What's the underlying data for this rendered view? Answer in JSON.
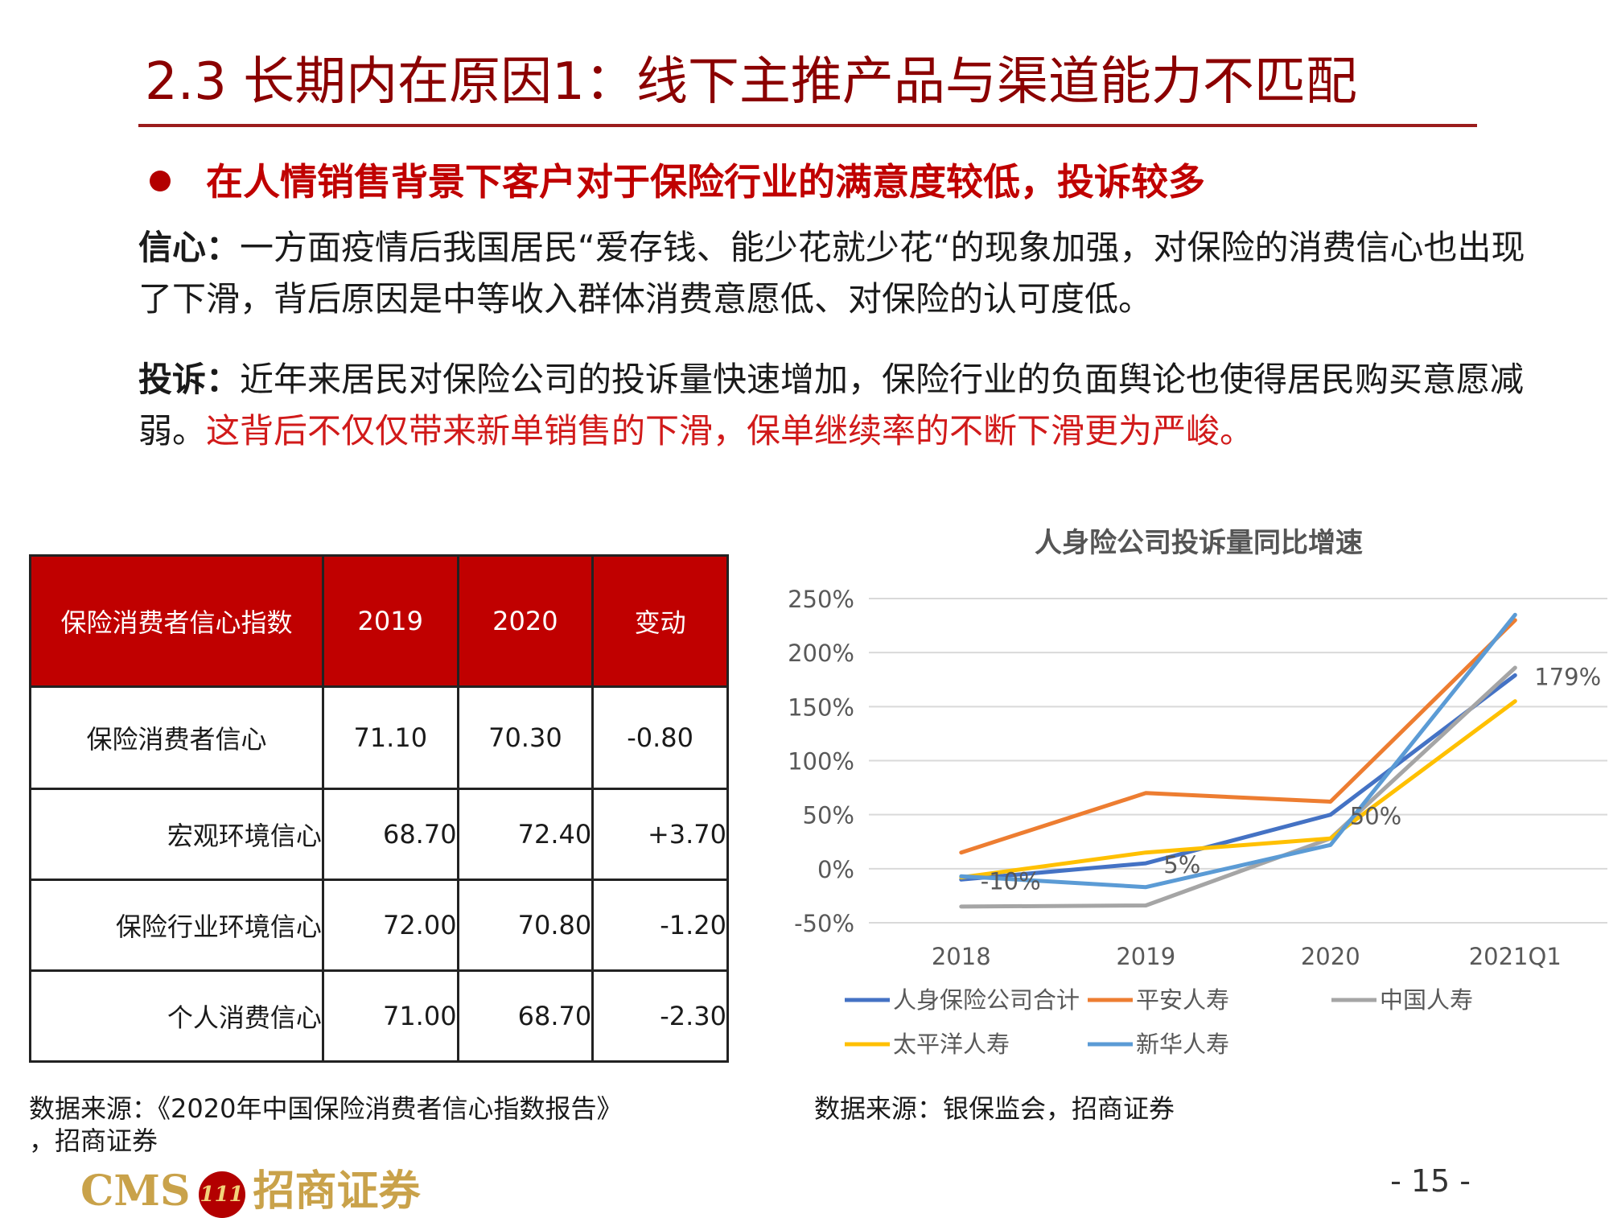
{
  "title": "2.3 长期内在原因1：线下主推产品与渠道能力不匹配",
  "bullet": "在人情销售背景下客户对于保险行业的满意度较低，投诉较多",
  "para1": {
    "label": "信心：",
    "text": "一方面疫情后我国居民“爱存钱、能少花就少花“的现象加强，对保险的消费信心也出现了下滑，背后原因是中等收入群体消费意愿低、对保险的认可度低。"
  },
  "para2": {
    "label": "投诉：",
    "text": "近年来居民对保险公司的投诉量快速增加，保险行业的负面舆论也使得居民购买意愿减弱。",
    "highlight": "这背后不仅仅带来新单销售的下滑，保单继续率的不断下滑更为严峻。"
  },
  "table": {
    "headers": [
      "保险消费者信心指数",
      "2019",
      "2020",
      "变动"
    ],
    "rows": [
      {
        "name": "保险消费者信心",
        "v2019": "71.10",
        "v2020": "70.30",
        "change": "-0.80"
      },
      {
        "name": "宏观环境信心",
        "v2019": "68.70",
        "v2020": "72.40",
        "change": "+3.70"
      },
      {
        "name": "保险行业环境信心",
        "v2019": "72.00",
        "v2020": "70.80",
        "change": "-1.20"
      },
      {
        "name": "个人消费信心",
        "v2019": "71.00",
        "v2020": "68.70",
        "change": "-2.30"
      }
    ]
  },
  "table_source_line1": "数据来源：《2020年中国保险消费者信心指数报告》",
  "table_source_line2": "，招商证券",
  "chart_source": "数据来源：银保监会，招商证券",
  "chart_data": {
    "type": "line",
    "title": "人身险公司投诉量同比增速",
    "categories": [
      "2018",
      "2019",
      "2020",
      "2021Q1"
    ],
    "y_ticks": [
      "250%",
      "200%",
      "150%",
      "100%",
      "50%",
      "0%",
      "-50%"
    ],
    "ylim": [
      -50,
      250
    ],
    "grid": true,
    "legend_position": "bottom",
    "series": [
      {
        "name": "人身保险公司合计",
        "color": "#4472c4",
        "values": [
          -10,
          5,
          50,
          179
        ]
      },
      {
        "name": "平安人寿",
        "color": "#ed7d31",
        "values": [
          15,
          70,
          62,
          230
        ]
      },
      {
        "name": "中国人寿",
        "color": "#a5a5a5",
        "values": [
          -35,
          -34,
          28,
          186
        ]
      },
      {
        "name": "太平洋人寿",
        "color": "#ffc000",
        "values": [
          -8,
          15,
          28,
          155
        ]
      },
      {
        "name": "新华人寿",
        "color": "#5b9bd5",
        "values": [
          -7,
          -17,
          22,
          235
        ]
      }
    ],
    "data_labels": [
      {
        "text": "-10%",
        "x": "2018",
        "y": -10
      },
      {
        "text": "5%",
        "x": "2019",
        "y": 5
      },
      {
        "text": "50%",
        "x": "2020",
        "y": 50
      },
      {
        "text": "179%",
        "x": "2021Q1",
        "y": 179
      }
    ]
  },
  "footer": {
    "logo_text": "CMS",
    "logo_mark": "111",
    "logo_cn": "招商证券",
    "page": "- 15 -"
  }
}
